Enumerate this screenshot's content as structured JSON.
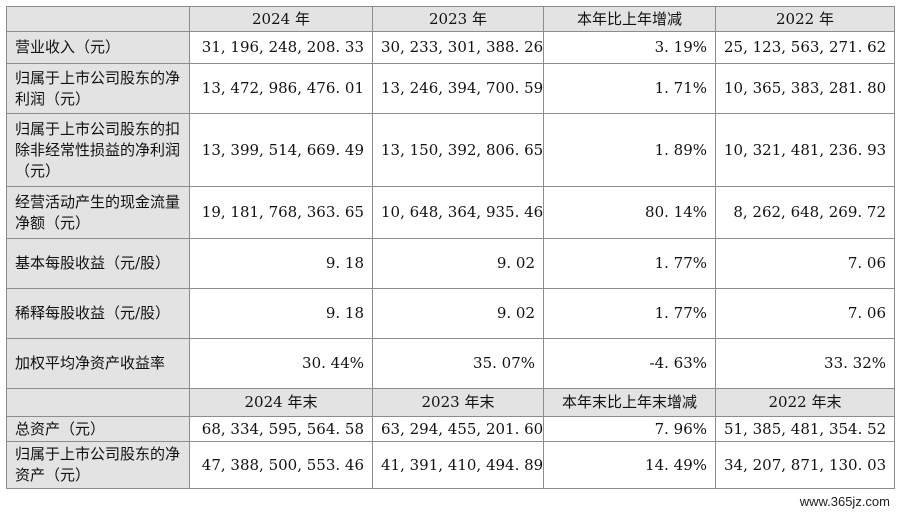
{
  "header1": [
    "",
    "2024 年",
    "2023 年",
    "本年比上年增减",
    "2022 年"
  ],
  "header2": [
    "",
    "2024 年末",
    "2023 年末",
    "本年末比上年末增减",
    "2022 年末"
  ],
  "rows1": [
    {
      "label": "营业收入（元）",
      "v1": "31, 196, 248, 208. 33",
      "v2": "30, 233, 301, 388. 26",
      "chg": "3. 19%",
      "v3": "25, 123, 563, 271. 62"
    },
    {
      "label": "归属于上市公司股东的净利润（元）",
      "v1": "13, 472, 986, 476. 01",
      "v2": "13, 246, 394, 700. 59",
      "chg": "1. 71%",
      "v3": "10, 365, 383, 281. 80"
    },
    {
      "label": "归属于上市公司股东的扣除非经常性损益的净利润（元）",
      "v1": "13, 399, 514, 669. 49",
      "v2": "13, 150, 392, 806. 65",
      "chg": "1. 89%",
      "v3": "10, 321, 481, 236. 93"
    },
    {
      "label": "经营活动产生的现金流量净额（元）",
      "v1": "19, 181, 768, 363. 65",
      "v2": "10, 648, 364, 935. 46",
      "chg": "80. 14%",
      "v3": "8, 262, 648, 269. 72"
    },
    {
      "label": "基本每股收益（元/股）",
      "v1": "9. 18",
      "v2": "9. 02",
      "chg": "1. 77%",
      "v3": "7. 06"
    },
    {
      "label": "稀释每股收益（元/股）",
      "v1": "9. 18",
      "v2": "9. 02",
      "chg": "1. 77%",
      "v3": "7. 06"
    },
    {
      "label": "加权平均净资产收益率",
      "v1": "30. 44%",
      "v2": "35. 07%",
      "chg": "-4. 63%",
      "v3": "33. 32%"
    }
  ],
  "rows2": [
    {
      "label": "总资产（元）",
      "v1": "68, 334, 595, 564. 58",
      "v2": "63, 294, 455, 201. 60",
      "chg": "7. 96%",
      "v3": "51, 385, 481, 354. 52"
    },
    {
      "label": "归属于上市公司股东的净资产（元）",
      "v1": "47, 388, 500, 553. 46",
      "v2": "41, 391, 410, 494. 89",
      "chg": "14. 49%",
      "v3": "34, 207, 871, 130. 03"
    }
  ],
  "watermark": "www.365jz.com"
}
